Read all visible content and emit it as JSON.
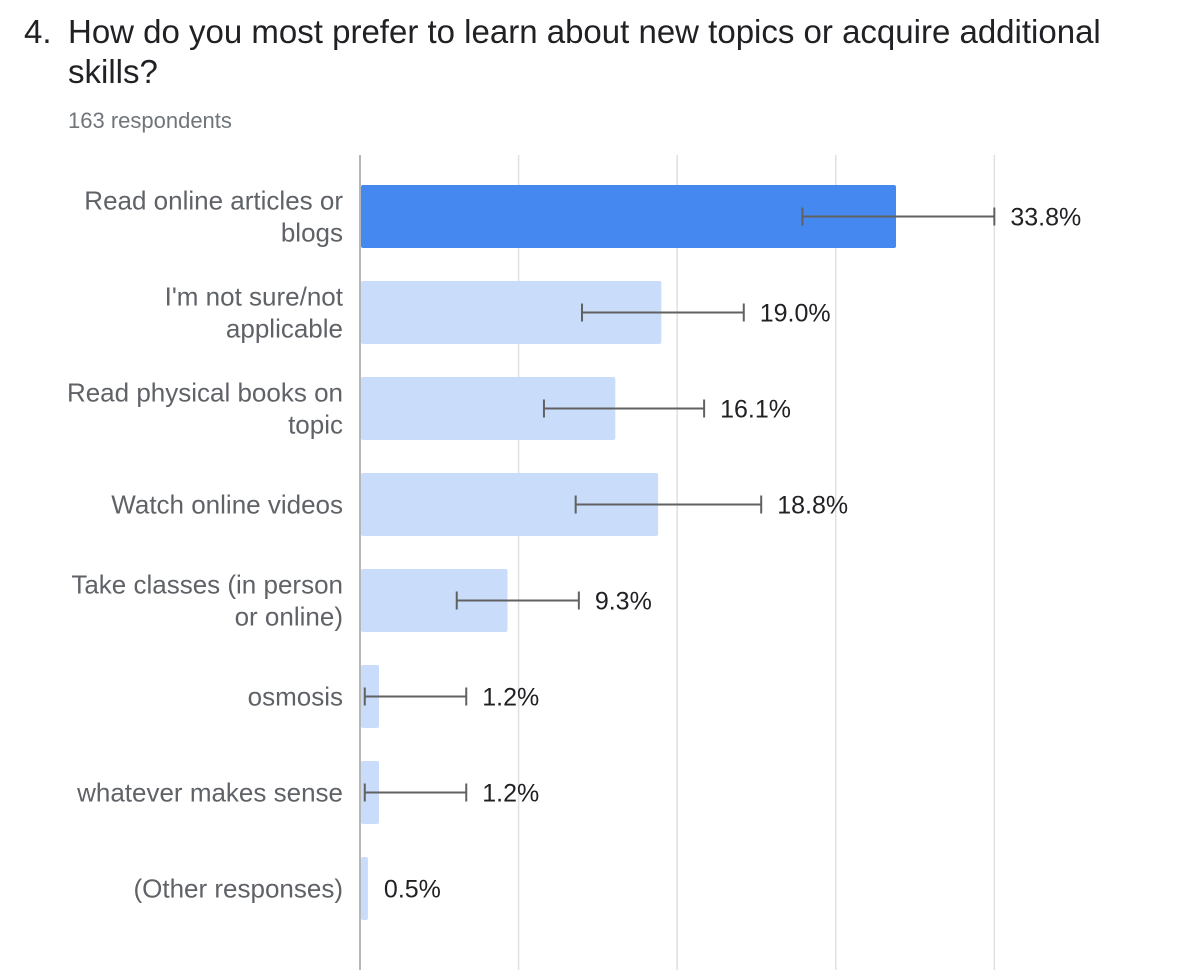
{
  "question": {
    "number": "4.",
    "title": "How do you most prefer to learn about new topics or acquire additional skills?",
    "respondents": "163 respondents"
  },
  "colors": {
    "highlight": "#4589f0",
    "bar": "#c9ddfa",
    "grid": "#e0e0e0",
    "axis": "#9e9e9e",
    "error_bar": "#616161"
  },
  "chart_data": {
    "type": "bar",
    "orientation": "horizontal",
    "categories": [
      [
        "Read online articles or",
        "blogs"
      ],
      [
        "I'm not sure/not",
        "applicable"
      ],
      [
        "Read physical books on",
        "topic"
      ],
      [
        "Watch online videos"
      ],
      [
        "Take classes (in person",
        "or online)"
      ],
      [
        "osmosis"
      ],
      [
        "whatever makes sense"
      ],
      [
        "(Other responses)"
      ]
    ],
    "values": [
      33.8,
      19.0,
      16.1,
      18.8,
      9.3,
      1.2,
      1.2,
      0.5
    ],
    "value_labels": [
      "33.8%",
      "19.0%",
      "16.1%",
      "18.8%",
      "9.3%",
      "1.2%",
      "1.2%",
      "0.5%"
    ],
    "error_bars": [
      [
        27.9,
        40.0
      ],
      [
        14.0,
        24.2
      ],
      [
        11.6,
        21.7
      ],
      [
        13.6,
        25.3
      ],
      [
        6.1,
        13.8
      ],
      [
        0.3,
        6.7
      ],
      [
        0.3,
        6.7
      ],
      null
    ],
    "highlight_index": 0,
    "xlim": [
      0,
      40
    ],
    "grid": true
  }
}
